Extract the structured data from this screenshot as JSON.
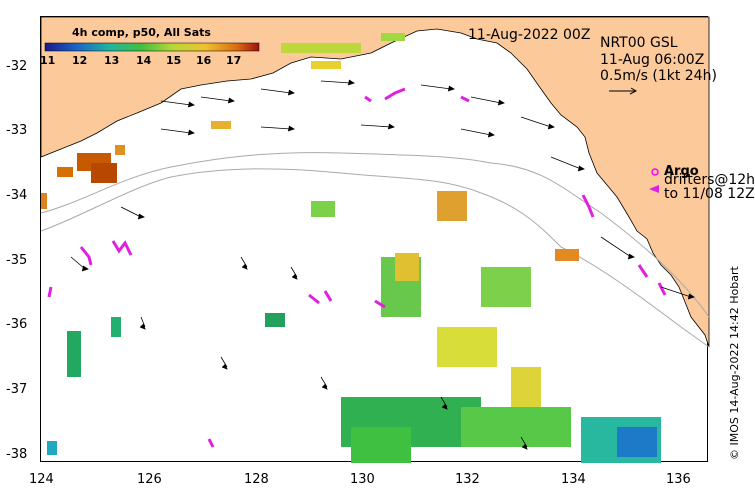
{
  "map": {
    "colorbar": {
      "title": "4h comp, p50, All Sats",
      "ticks": [
        "11",
        "12",
        "13",
        "14",
        "15",
        "16",
        "17"
      ]
    },
    "date_label": "11-Aug-2022 00Z",
    "current": {
      "line1": "NRT00 GSL",
      "line2": "11-Aug 06:00Z",
      "line3": "0.5m/s (1kt 24h)"
    },
    "legend": {
      "argo": "Argo",
      "drifters1": "drifters@12h",
      "drifters2": "to 11/08 12Z"
    },
    "credit": "© IMOS 14-Aug-2022 14:42 Hobart",
    "lat_labels": [
      "-32",
      "-33",
      "-34",
      "-35",
      "-36",
      "-37",
      "-38"
    ],
    "lon_labels": [
      "124",
      "126",
      "128",
      "130",
      "132",
      "134",
      "136"
    ],
    "colors": {
      "land": "#fcc99b",
      "argo": "#ff00ff",
      "drifter": "#e020e0"
    }
  }
}
